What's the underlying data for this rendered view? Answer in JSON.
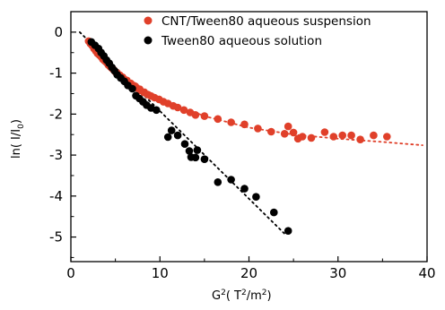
{
  "chart_data": {
    "type": "scatter",
    "xlabel_base": "G",
    "xlabel_sup": "2",
    "xlabel_units_open": "( T",
    "xlabel_units_sup1": "2",
    "xlabel_units_mid": "/m",
    "xlabel_units_sup2": "2",
    "xlabel_units_close": ")",
    "ylabel_prefix": "ln( I/I",
    "ylabel_sub": "0",
    "ylabel_suffix": ")",
    "xlim": [
      0,
      40
    ],
    "ylim": [
      -5.6,
      0.5
    ],
    "xticks": [
      0,
      10,
      20,
      30,
      40
    ],
    "yticks": [
      0,
      -1,
      -2,
      -3,
      -4,
      -5
    ],
    "grid": false,
    "legend_position": "top-right",
    "series": [
      {
        "name": "CNT/Tween80 aqueous suspension",
        "color": "#e0402a",
        "marker": "circle",
        "points": [
          [
            2.0,
            -0.22
          ],
          [
            2.2,
            -0.28
          ],
          [
            2.4,
            -0.33
          ],
          [
            2.6,
            -0.4
          ],
          [
            2.8,
            -0.46
          ],
          [
            3.0,
            -0.52
          ],
          [
            3.2,
            -0.56
          ],
          [
            3.4,
            -0.6
          ],
          [
            3.6,
            -0.66
          ],
          [
            3.8,
            -0.7
          ],
          [
            4.0,
            -0.74
          ],
          [
            4.2,
            -0.8
          ],
          [
            4.4,
            -0.84
          ],
          [
            4.6,
            -0.88
          ],
          [
            4.8,
            -0.92
          ],
          [
            5.0,
            -0.97
          ],
          [
            5.2,
            -1.0
          ],
          [
            5.5,
            -1.05
          ],
          [
            5.8,
            -1.1
          ],
          [
            6.0,
            -1.15
          ],
          [
            6.3,
            -1.18
          ],
          [
            6.6,
            -1.25
          ],
          [
            7.0,
            -1.3
          ],
          [
            7.4,
            -1.36
          ],
          [
            7.8,
            -1.42
          ],
          [
            8.2,
            -1.47
          ],
          [
            8.6,
            -1.52
          ],
          [
            9.0,
            -1.56
          ],
          [
            9.4,
            -1.6
          ],
          [
            9.9,
            -1.64
          ],
          [
            10.4,
            -1.7
          ],
          [
            10.9,
            -1.74
          ],
          [
            11.5,
            -1.8
          ],
          [
            12.0,
            -1.84
          ],
          [
            12.7,
            -1.9
          ],
          [
            13.4,
            -1.96
          ],
          [
            14.0,
            -2.02
          ],
          [
            15.0,
            -2.05
          ],
          [
            16.5,
            -2.12
          ],
          [
            18.0,
            -2.2
          ],
          [
            19.5,
            -2.25
          ],
          [
            21.0,
            -2.35
          ],
          [
            22.5,
            -2.43
          ],
          [
            24.0,
            -2.48
          ],
          [
            24.4,
            -2.3
          ],
          [
            25.0,
            -2.45
          ],
          [
            25.5,
            -2.6
          ],
          [
            26.0,
            -2.55
          ],
          [
            27.0,
            -2.58
          ],
          [
            28.5,
            -2.44
          ],
          [
            29.5,
            -2.55
          ],
          [
            30.5,
            -2.52
          ],
          [
            31.5,
            -2.52
          ],
          [
            32.5,
            -2.62
          ],
          [
            34.0,
            -2.52
          ],
          [
            35.5,
            -2.55
          ]
        ],
        "fit": [
          [
            2.0,
            -0.2
          ],
          [
            5,
            -0.92
          ],
          [
            10,
            -1.63
          ],
          [
            15,
            -2.05
          ],
          [
            20,
            -2.33
          ],
          [
            25,
            -2.5
          ],
          [
            30,
            -2.6
          ],
          [
            35,
            -2.68
          ],
          [
            39.5,
            -2.76
          ]
        ]
      },
      {
        "name": "Tween80 aqueous solution",
        "color": "#000000",
        "marker": "circle",
        "points": [
          [
            2.3,
            -0.24
          ],
          [
            2.7,
            -0.32
          ],
          [
            3.1,
            -0.4
          ],
          [
            3.4,
            -0.5
          ],
          [
            3.7,
            -0.58
          ],
          [
            4.0,
            -0.68
          ],
          [
            4.3,
            -0.76
          ],
          [
            4.6,
            -0.86
          ],
          [
            4.9,
            -0.94
          ],
          [
            5.2,
            -1.04
          ],
          [
            5.6,
            -1.12
          ],
          [
            6.0,
            -1.2
          ],
          [
            6.4,
            -1.3
          ],
          [
            6.9,
            -1.38
          ],
          [
            7.3,
            -1.55
          ],
          [
            7.7,
            -1.62
          ],
          [
            8.1,
            -1.7
          ],
          [
            8.5,
            -1.78
          ],
          [
            9.0,
            -1.85
          ],
          [
            9.6,
            -1.9
          ],
          [
            10.9,
            -2.56
          ],
          [
            11.3,
            -2.4
          ],
          [
            12.0,
            -2.52
          ],
          [
            12.8,
            -2.73
          ],
          [
            13.3,
            -2.9
          ],
          [
            13.5,
            -3.05
          ],
          [
            14.2,
            -2.88
          ],
          [
            14.0,
            -3.06
          ],
          [
            15.0,
            -3.1
          ],
          [
            16.5,
            -3.66
          ],
          [
            18.0,
            -3.6
          ],
          [
            19.5,
            -3.82
          ],
          [
            20.8,
            -4.02
          ],
          [
            22.8,
            -4.4
          ],
          [
            24.4,
            -4.85
          ]
        ],
        "fit": [
          [
            1.0,
            0.0
          ],
          [
            24.0,
            -4.92
          ]
        ]
      }
    ]
  }
}
